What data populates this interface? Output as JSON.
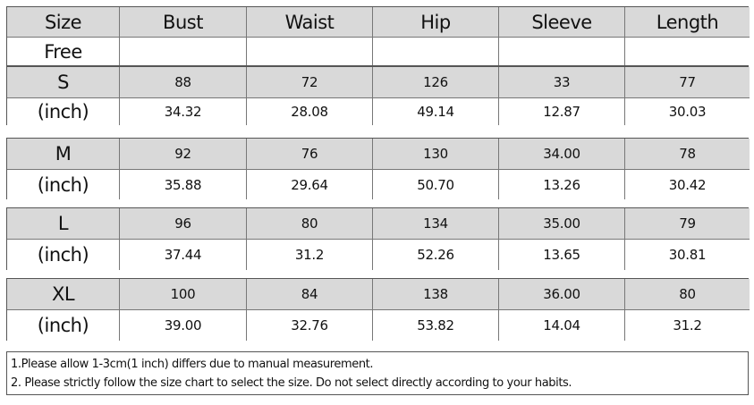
{
  "header": {
    "columns": [
      "Size",
      "Bust",
      "Waist",
      "Hip",
      "Sleeve",
      "Length"
    ],
    "free_label": "Free"
  },
  "groups": [
    {
      "size": "S",
      "cm": [
        "88",
        "72",
        "126",
        "33",
        "77"
      ],
      "unit": "(inch)",
      "inch": [
        "34.32",
        "28.08",
        "49.14",
        "12.87",
        "30.03"
      ]
    },
    {
      "size": "M",
      "cm": [
        "92",
        "76",
        "130",
        "34.00",
        "78"
      ],
      "unit": "(inch)",
      "inch": [
        "35.88",
        "29.64",
        "50.70",
        "13.26",
        "30.42"
      ]
    },
    {
      "size": "L",
      "cm": [
        "96",
        "80",
        "134",
        "35.00",
        "79"
      ],
      "unit": "(inch)",
      "inch": [
        "37.44",
        "31.2",
        "52.26",
        "13.65",
        "30.81"
      ]
    },
    {
      "size": "XL",
      "cm": [
        "100",
        "84",
        "138",
        "36.00",
        "80"
      ],
      "unit": "(inch)",
      "inch": [
        "39.00",
        "32.76",
        "53.82",
        "14.04",
        "31.2"
      ]
    }
  ],
  "notes": [
    "1.Please allow 1-3cm(1 inch) differs due to manual measurement.",
    "2. Please strictly follow the size chart to select the size. Do not select directly according to your habits."
  ]
}
